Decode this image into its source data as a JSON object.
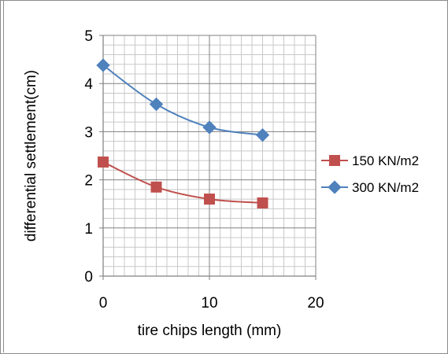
{
  "chart_data": {
    "type": "line",
    "title": "",
    "xlabel": "tire chips length (mm)",
    "ylabel": "differential settlement(cm)",
    "xlim": [
      0,
      20
    ],
    "ylim": [
      0,
      5
    ],
    "x_ticks": [
      "0",
      "10",
      "20"
    ],
    "y_ticks": [
      "0",
      "1",
      "2",
      "3",
      "4",
      "5"
    ],
    "grid": true,
    "legend_position": "right",
    "series": [
      {
        "name": "150 KN/m2",
        "marker": "square",
        "color": "#c0504d",
        "x": [
          0,
          5,
          10,
          15
        ],
        "y": [
          2.37,
          1.85,
          1.6,
          1.52
        ]
      },
      {
        "name": "300 KN/m2",
        "marker": "diamond",
        "color": "#4f81bd",
        "x": [
          0,
          5,
          10,
          15
        ],
        "y": [
          4.38,
          3.57,
          3.09,
          2.93
        ]
      }
    ]
  }
}
